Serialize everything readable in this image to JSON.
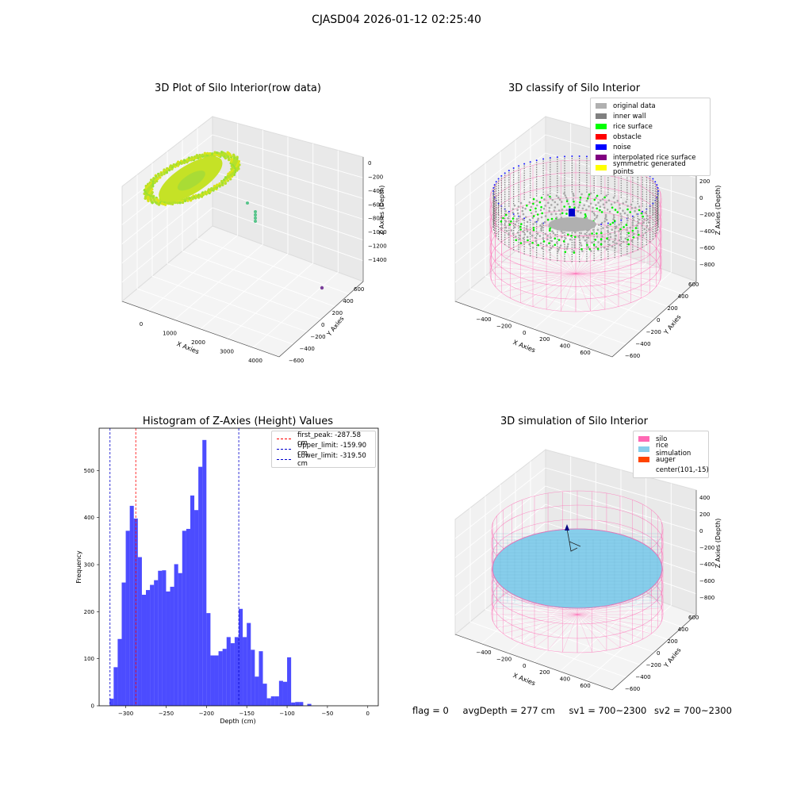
{
  "suptitle": "CJASD04 2026-01-12 02:25:40",
  "panels": {
    "p1": {
      "title": "3D Plot of Silo Interior(row data)",
      "xlabel": "X Axies",
      "ylabel": "Y Axies",
      "zlabel": "Z Axies (Depth)",
      "xticks": [
        "0",
        "1000",
        "2000",
        "3000",
        "4000"
      ],
      "yticks": [
        "600",
        "400",
        "200",
        "0",
        "−200",
        "−400",
        "−600"
      ],
      "zticks": [
        "0",
        "−200",
        "−400",
        "−600",
        "−800",
        "−1000",
        "−1200",
        "−1400"
      ]
    },
    "p2": {
      "title": "3D classify of Silo Interior",
      "xlabel": "X Axies",
      "ylabel": "Y Axies",
      "zlabel": "Z Axies (Depth)",
      "xticks": [
        "−400",
        "−200",
        "0",
        "200",
        "400",
        "600"
      ],
      "yticks": [
        "600",
        "400",
        "200",
        "0",
        "−200",
        "−400",
        "−600"
      ],
      "zticks": [
        "400",
        "200",
        "0",
        "−200",
        "−400",
        "−600",
        "−800"
      ],
      "legend": [
        {
          "label": "original data",
          "color": "#b0b0b0"
        },
        {
          "label": "inner wall",
          "color": "#808080"
        },
        {
          "label": "rice surface",
          "color": "#00ff00"
        },
        {
          "label": "obstacle",
          "color": "#ff0000"
        },
        {
          "label": "noise",
          "color": "#0000ff"
        },
        {
          "label": "interpolated rice surface",
          "color": "#800080"
        },
        {
          "label": "symmetric generated points",
          "color": "#ffff00"
        }
      ]
    },
    "p3": {
      "title": "Histogram of Z-Axies (Height) Values",
      "xlabel": "Depth (cm)",
      "ylabel": "Frequency",
      "legend": [
        {
          "label": "first_peak: -287.58 cm",
          "color": "#ff0000"
        },
        {
          "label": "Upper_limit: -159.90 cm",
          "color": "#0000cc"
        },
        {
          "label": "Lower_limit: -319.50 cm",
          "color": "#0000cc"
        }
      ]
    },
    "p4": {
      "title": "3D simulation of Silo Interior",
      "xlabel": "X Axies",
      "ylabel": "Y Axies",
      "zlabel": "Z Axies (Depth)",
      "xticks": [
        "−400",
        "−200",
        "0",
        "200",
        "400",
        "600"
      ],
      "yticks": [
        "600",
        "400",
        "200",
        "0",
        "−200",
        "−400",
        "−600"
      ],
      "zticks": [
        "400",
        "200",
        "0",
        "−200",
        "−400",
        "−600",
        "−800"
      ],
      "legend": [
        {
          "label": "silo",
          "color": "#ff69b4"
        },
        {
          "label": "rice simulation",
          "color": "#87ceeb"
        },
        {
          "label": "auger",
          "color": "#ff4500"
        },
        {
          "label": "center(101,-15)",
          "color": ""
        }
      ]
    }
  },
  "footer": {
    "flag": "flag = 0",
    "avg": "avgDepth = 277 cm",
    "sv1": "sv1 = 700~2300",
    "sv2": "sv2 = 700~2300"
  },
  "chart_data": [
    {
      "type": "scatter",
      "title": "3D Plot of Silo Interior(row data)",
      "xlabel": "X Axies",
      "ylabel": "Y Axies",
      "zlabel": "Z Axies (Depth)",
      "xlim": [
        -400,
        4300
      ],
      "ylim": [
        -700,
        700
      ],
      "zlim": [
        -1500,
        50
      ],
      "note_points": "dense ring of green-yellow points near x 0-1000, z -200 to -500; few outliers near x 2200 and x 4200"
    },
    {
      "type": "scatter",
      "title": "3D classify of Silo Interior",
      "xlabel": "X Axies",
      "ylabel": "Y Axies",
      "zlabel": "Z Axies (Depth)",
      "xlim": [
        -500,
        700
      ],
      "ylim": [
        -700,
        700
      ],
      "zlim": [
        -900,
        450
      ],
      "series": [
        {
          "name": "original data"
        },
        {
          "name": "inner wall"
        },
        {
          "name": "rice surface"
        },
        {
          "name": "obstacle"
        },
        {
          "name": "noise"
        },
        {
          "name": "interpolated rice surface"
        },
        {
          "name": "symmetric generated points"
        }
      ]
    },
    {
      "type": "bar",
      "title": "Histogram of Z-Axies (Height) Values",
      "xlabel": "Depth (cm)",
      "ylabel": "Frequency",
      "xlim": [
        -333,
        13
      ],
      "ylim": [
        0,
        590
      ],
      "xticks": [
        -300,
        -250,
        -200,
        -150,
        -100,
        -50,
        0
      ],
      "yticks": [
        0,
        100,
        200,
        300,
        400,
        500
      ],
      "bin_start": -320,
      "bin_width": 5,
      "values": [
        15,
        82,
        142,
        262,
        372,
        425,
        398,
        316,
        236,
        246,
        257,
        267,
        287,
        288,
        243,
        253,
        301,
        282,
        372,
        376,
        447,
        416,
        508,
        565,
        197,
        107,
        107,
        116,
        121,
        146,
        133,
        146,
        206,
        146,
        176,
        119,
        62,
        116,
        47,
        16,
        20,
        20,
        53,
        51,
        103,
        7,
        8,
        8,
        0,
        4
      ],
      "vlines": [
        {
          "label": "first_peak: -287.58 cm",
          "x": -287.58,
          "color": "#ff0000"
        },
        {
          "label": "Upper_limit: -159.90 cm",
          "x": -159.9,
          "color": "#0000cc"
        },
        {
          "label": "Lower_limit: -319.50 cm",
          "x": -319.5,
          "color": "#0000cc"
        }
      ]
    },
    {
      "type": "scatter",
      "title": "3D simulation of Silo Interior",
      "xlabel": "X Axies",
      "ylabel": "Y Axies",
      "zlabel": "Z Axies (Depth)",
      "xlim": [
        -500,
        700
      ],
      "ylim": [
        -700,
        700
      ],
      "zlim": [
        -900,
        450
      ],
      "series": [
        {
          "name": "silo"
        },
        {
          "name": "rice simulation"
        },
        {
          "name": "auger"
        },
        {
          "name": "center(101,-15)"
        }
      ]
    }
  ]
}
